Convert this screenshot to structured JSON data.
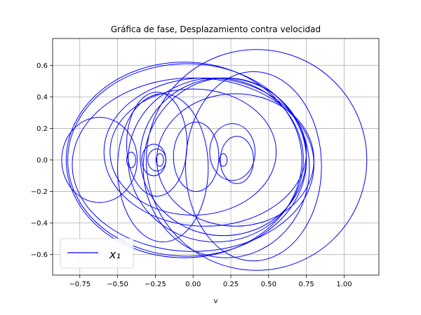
{
  "chart_data": {
    "type": "line",
    "title": "Gráfica de fase, Desplazamiento contra velocidad",
    "xlabel": "v",
    "ylabel": "",
    "xlim": [
      -0.93,
      1.23
    ],
    "ylim": [
      -0.73,
      0.77
    ],
    "xticks": [
      -0.75,
      -0.5,
      -0.25,
      0.0,
      0.25,
      0.5,
      0.75,
      1.0
    ],
    "xtick_labels": [
      "−0.75",
      "−0.50",
      "−0.25",
      "0.00",
      "0.25",
      "0.50",
      "0.75",
      "1.00"
    ],
    "yticks": [
      -0.6,
      -0.4,
      -0.2,
      0.0,
      0.2,
      0.4,
      0.6
    ],
    "ytick_labels": [
      "−0.6",
      "−0.4",
      "−0.2",
      "0.0",
      "0.2",
      "0.4",
      "0.6"
    ],
    "grid": true,
    "legend": {
      "placement": "lower-left",
      "entries": [
        "x₁"
      ]
    },
    "series": [
      {
        "name": "x₁",
        "color": "#0000ff",
        "style": "phase-portrait trajectory"
      }
    ],
    "loops": [
      {
        "cx": -0.06,
        "cy": 0.0,
        "rx": 0.78,
        "ry": 0.62
      },
      {
        "cx": -0.04,
        "cy": 0.0,
        "rx": 0.79,
        "ry": 0.61
      },
      {
        "cx": 0.0,
        "cy": -0.03,
        "rx": 0.8,
        "ry": 0.55
      },
      {
        "cx": 0.15,
        "cy": 0.0,
        "rx": 0.58,
        "ry": 0.52
      },
      {
        "cx": 0.2,
        "cy": 0.02,
        "rx": 0.55,
        "ry": 0.5
      },
      {
        "cx": 0.08,
        "cy": 0.05,
        "rx": 0.67,
        "ry": 0.47
      },
      {
        "cx": 0.42,
        "cy": 0.0,
        "rx": 0.73,
        "ry": 0.7
      },
      {
        "cx": 0.22,
        "cy": -0.05,
        "rx": 0.55,
        "ry": 0.57
      },
      {
        "cx": 0.28,
        "cy": 0.0,
        "rx": 0.52,
        "ry": 0.42
      },
      {
        "cx": 0.0,
        "cy": 0.05,
        "rx": 0.55,
        "ry": 0.4
      },
      {
        "cx": -0.2,
        "cy": -0.05,
        "rx": 0.3,
        "ry": 0.47
      },
      {
        "cx": -0.62,
        "cy": 0.0,
        "rx": 0.25,
        "ry": 0.27
      },
      {
        "cx": -0.24,
        "cy": 0.1,
        "rx": 0.2,
        "ry": 0.33
      },
      {
        "cx": 0.26,
        "cy": 0.05,
        "rx": 0.15,
        "ry": 0.18
      },
      {
        "cx": 0.02,
        "cy": 0.02,
        "rx": 0.15,
        "ry": 0.22
      },
      {
        "cx": 0.29,
        "cy": 0.0,
        "rx": 0.11,
        "ry": 0.15
      },
      {
        "cx": -0.26,
        "cy": 0.0,
        "rx": 0.08,
        "ry": 0.1
      },
      {
        "cx": 0.2,
        "cy": 0.0,
        "rx": 0.025,
        "ry": 0.04
      },
      {
        "cx": -0.22,
        "cy": 0.0,
        "rx": 0.025,
        "ry": 0.04
      },
      {
        "cx": -0.24,
        "cy": 0.0,
        "rx": 0.06,
        "ry": 0.07
      },
      {
        "cx": -0.41,
        "cy": 0.0,
        "rx": 0.03,
        "ry": 0.05
      },
      {
        "cx": 0.4,
        "cy": -0.04,
        "rx": 0.45,
        "ry": 0.6
      }
    ]
  }
}
